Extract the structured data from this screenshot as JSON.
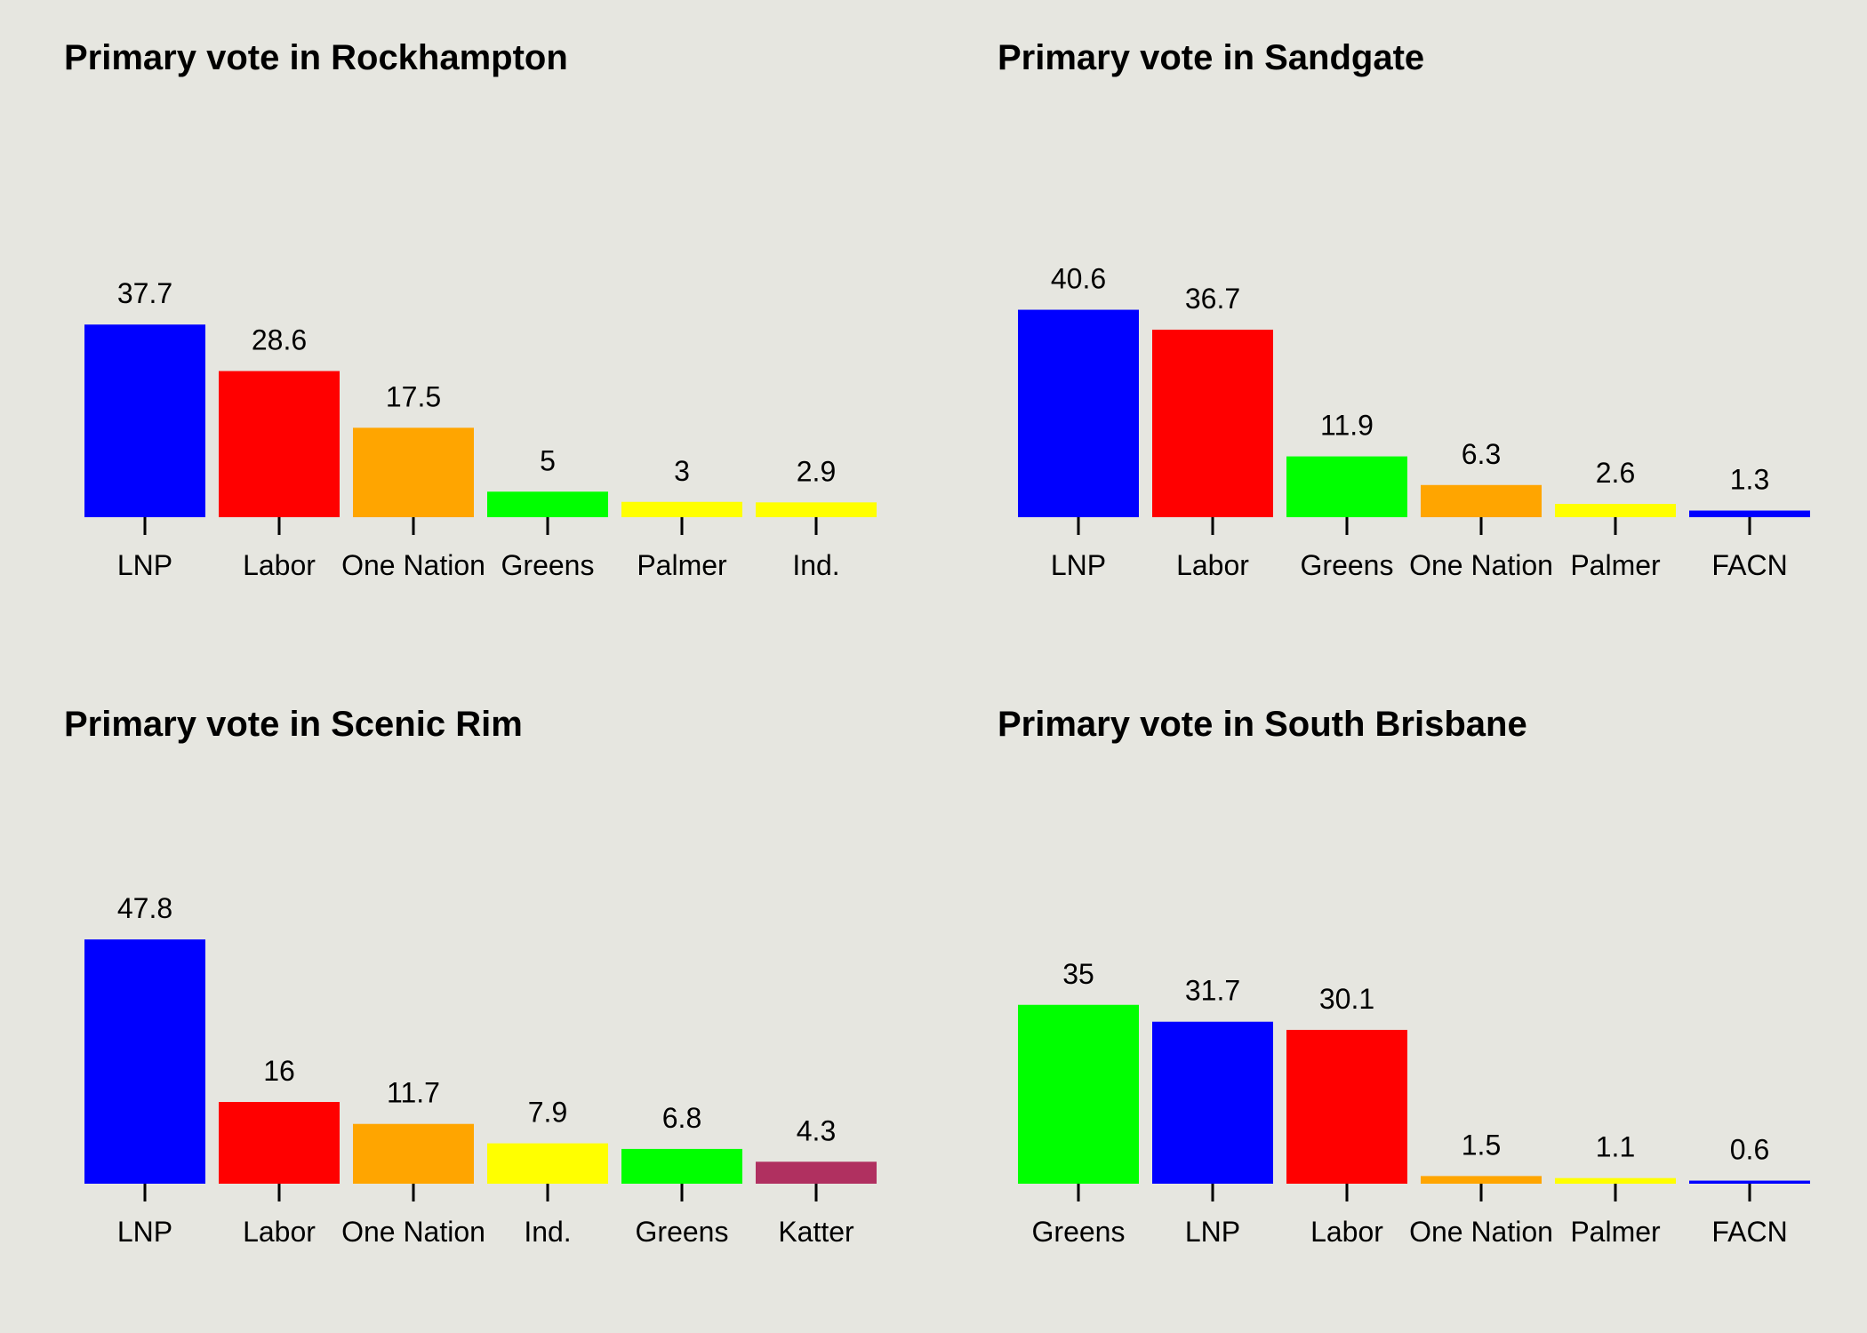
{
  "chart_data": [
    {
      "type": "bar",
      "title": "Primary vote in Rockhampton",
      "categories": [
        "LNP",
        "Labor",
        "One Nation",
        "Greens",
        "Palmer",
        "Ind."
      ],
      "values": [
        37.7,
        28.6,
        17.5,
        5,
        3,
        2.9
      ],
      "value_labels": [
        "37.7",
        "28.6",
        "17.5",
        "5",
        "3",
        "2.9"
      ],
      "colors": [
        "#0000ff",
        "#ff0000",
        "#ffa500",
        "#00ff00",
        "#ffff00",
        "#ffff00"
      ],
      "xlabel": "",
      "ylabel": "",
      "ylim": [
        0,
        55
      ],
      "grid": false
    },
    {
      "type": "bar",
      "title": "Primary vote in Sandgate",
      "categories": [
        "LNP",
        "Labor",
        "Greens",
        "One Nation",
        "Palmer",
        "FACN"
      ],
      "values": [
        40.6,
        36.7,
        11.9,
        6.3,
        2.6,
        1.3
      ],
      "value_labels": [
        "40.6",
        "36.7",
        "11.9",
        "6.3",
        "2.6",
        "1.3"
      ],
      "colors": [
        "#0000ff",
        "#ff0000",
        "#00ff00",
        "#ffa500",
        "#ffff00",
        "#0000ff"
      ],
      "xlabel": "",
      "ylabel": "",
      "ylim": [
        0,
        55
      ],
      "grid": false
    },
    {
      "type": "bar",
      "title": "Primary vote in Scenic Rim",
      "categories": [
        "LNP",
        "Labor",
        "One Nation",
        "Ind.",
        "Greens",
        "Katter"
      ],
      "values": [
        47.8,
        16,
        11.7,
        7.9,
        6.8,
        4.3
      ],
      "value_labels": [
        "47.8",
        "16",
        "11.7",
        "7.9",
        "6.8",
        "4.3"
      ],
      "colors": [
        "#0000ff",
        "#ff0000",
        "#ffa500",
        "#ffff00",
        "#00ff00",
        "#b03060"
      ],
      "xlabel": "",
      "ylabel": "",
      "ylim": [
        0,
        55
      ],
      "grid": false
    },
    {
      "type": "bar",
      "title": "Primary vote in South Brisbane",
      "categories": [
        "Greens",
        "LNP",
        "Labor",
        "One Nation",
        "Palmer",
        "FACN"
      ],
      "values": [
        35,
        31.7,
        30.1,
        1.5,
        1.1,
        0.6
      ],
      "value_labels": [
        "35",
        "31.7",
        "30.1",
        "1.5",
        "1.1",
        "0.6"
      ],
      "colors": [
        "#00ff00",
        "#0000ff",
        "#ff0000",
        "#ffa500",
        "#ffff00",
        "#0000ff"
      ],
      "xlabel": "",
      "ylabel": "",
      "ylim": [
        0,
        55
      ],
      "grid": false
    }
  ],
  "style": {
    "background": "#e6e6e0",
    "text_color": "#000000"
  }
}
